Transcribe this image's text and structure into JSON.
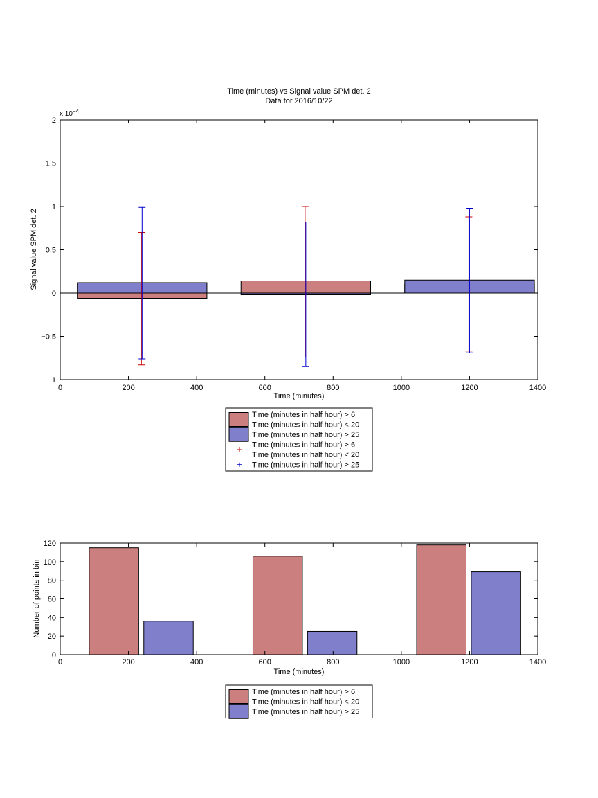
{
  "chart_data": [
    {
      "type": "bar",
      "title": "Time (minutes) vs Signal value SPM det. 2",
      "subtitle": "Data for 2016/10/22",
      "xlabel": "Time (minutes)",
      "ylabel": "Signal value SPM det. 2",
      "exponent_base": "x 10",
      "exponent_power": "−4",
      "xlim": [
        0,
        1400
      ],
      "ylim": [
        -1,
        2
      ],
      "xticks": [
        0,
        200,
        400,
        600,
        800,
        1000,
        1200,
        1400
      ],
      "xtick_labels": [
        "0",
        "200",
        "400",
        "600",
        "800",
        "1000",
        "1200",
        "1400"
      ],
      "yticks": [
        -1,
        -0.5,
        0,
        0.5,
        1,
        1.5,
        2
      ],
      "ytick_labels": [
        "−1",
        "−0.5",
        "0",
        "0.5",
        "1",
        "1.5",
        "2"
      ],
      "bar_ranges": [
        [
          50,
          430
        ],
        [
          530,
          910
        ],
        [
          1010,
          1390
        ]
      ],
      "series": [
        {
          "color": "#cc7f7f",
          "values": [
            -0.06,
            0.14,
            0.1
          ],
          "errorbar_x": [
            238,
            718,
            1198
          ],
          "error_low": [
            -0.83,
            -0.74,
            -0.67
          ],
          "error_high": [
            0.7,
            1.0,
            0.88
          ],
          "errorbar_color": "#cc0000"
        },
        {
          "color": "#7f7fcc",
          "values": [
            0.12,
            -0.02,
            0.15
          ],
          "errorbar_x": [
            240,
            720,
            1200
          ],
          "error_low": [
            -0.76,
            -0.85,
            -0.69
          ],
          "error_high": [
            0.99,
            0.82,
            0.98
          ],
          "errorbar_color": "#0000cc"
        }
      ],
      "legend": {
        "placement": "below",
        "entries": [
          {
            "kind": "patch",
            "color": "#cc7f7f",
            "lines": [
              "Time (minutes in half hour) > 6",
              "Time (minutes in half hour) < 20"
            ]
          },
          {
            "kind": "patch",
            "color": "#7f7fcc",
            "lines": [
              "Time (minutes in half hour) > 25"
            ]
          },
          {
            "kind": "marker",
            "color": "#cc0000",
            "lines": [
              "Time (minutes in half hour) > 6",
              "Time (minutes in half hour) < 20"
            ]
          },
          {
            "kind": "marker",
            "color": "#0000cc",
            "lines": [
              "Time (minutes in half hour) > 25"
            ]
          }
        ]
      }
    },
    {
      "type": "bar",
      "xlabel": "Time (minutes)",
      "ylabel": "Number of points in bin",
      "xlim": [
        0,
        1400
      ],
      "ylim": [
        0,
        120
      ],
      "xticks": [
        0,
        200,
        400,
        600,
        800,
        1000,
        1200,
        1400
      ],
      "xtick_labels": [
        "0",
        "200",
        "400",
        "600",
        "800",
        "1000",
        "1200",
        "1400"
      ],
      "yticks": [
        0,
        20,
        40,
        60,
        80,
        100,
        120
      ],
      "ytick_labels": [
        "0",
        "20",
        "40",
        "60",
        "80",
        "100",
        "120"
      ],
      "bars": [
        {
          "x0": 85,
          "x1": 230,
          "value": 115,
          "color": "#cc7f7f"
        },
        {
          "x0": 245,
          "x1": 390,
          "value": 36,
          "color": "#7f7fcc"
        },
        {
          "x0": 565,
          "x1": 710,
          "value": 106,
          "color": "#cc7f7f"
        },
        {
          "x0": 725,
          "x1": 870,
          "value": 25,
          "color": "#7f7fcc"
        },
        {
          "x0": 1045,
          "x1": 1190,
          "value": 118,
          "color": "#cc7f7f"
        },
        {
          "x0": 1205,
          "x1": 1350,
          "value": 89,
          "color": "#7f7fcc"
        }
      ],
      "legend": {
        "placement": "below",
        "entries": [
          {
            "kind": "patch",
            "color": "#cc7f7f",
            "lines": [
              "Time (minutes in half hour) > 6",
              "Time (minutes in half hour) < 20"
            ]
          },
          {
            "kind": "patch",
            "color": "#7f7fcc",
            "lines": [
              "Time (minutes in half hour) > 25"
            ]
          }
        ]
      }
    }
  ]
}
